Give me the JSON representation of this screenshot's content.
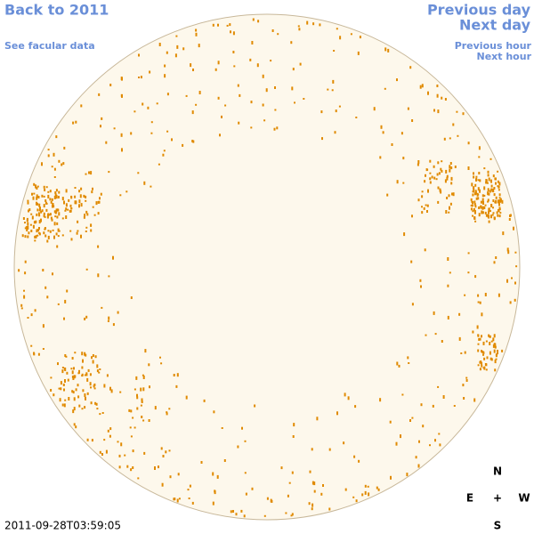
{
  "links": {
    "back": "Back to 2011",
    "facular": "See facular data",
    "previous_day": "Previous day",
    "next_day": "Next day",
    "previous_hour": "Previous hour",
    "next_hour": "Next hour"
  },
  "compass": {
    "north": "N",
    "east": "E",
    "center": "+",
    "west": "W",
    "south": "S"
  },
  "timestamp": "2011-09-28T03:59:05"
}
